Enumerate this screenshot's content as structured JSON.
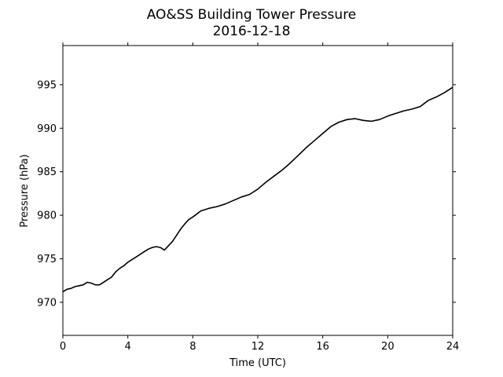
{
  "chart_data": {
    "type": "line",
    "title": "AO&SS Building Tower Pressure",
    "subtitle": "2016-12-18",
    "xlabel": "Time (UTC)",
    "ylabel": "Pressure (hPa)",
    "xlim": [
      0,
      24
    ],
    "ylim": [
      966.2,
      999.5
    ],
    "xticks": [
      0,
      4,
      8,
      12,
      16,
      20,
      24
    ],
    "yticks": [
      970,
      975,
      980,
      985,
      990,
      995
    ],
    "grid": false,
    "line_color": "#000000",
    "series": [
      {
        "x": [
          0,
          0.25,
          0.5,
          0.75,
          1.0,
          1.25,
          1.5,
          1.75,
          2.0,
          2.25,
          2.5,
          2.75,
          3.0,
          3.25,
          3.5,
          3.75,
          4.0,
          4.25,
          4.5,
          4.75,
          5.0,
          5.25,
          5.5,
          5.75,
          6.0,
          6.25,
          6.5,
          6.75,
          7.0,
          7.25,
          7.5,
          7.75,
          8.0,
          8.5,
          9.0,
          9.5,
          10.0,
          10.5,
          11.0,
          11.5,
          12.0,
          12.5,
          13.0,
          13.5,
          14.0,
          14.5,
          15.0,
          15.5,
          16.0,
          16.5,
          17.0,
          17.5,
          18.0,
          18.5,
          19.0,
          19.5,
          20.0,
          20.5,
          21.0,
          21.5,
          22.0,
          22.5,
          23.0,
          23.5,
          24.0
        ],
        "y": [
          971.2,
          971.5,
          971.6,
          971.8,
          971.9,
          972.0,
          972.3,
          972.2,
          972.0,
          972.0,
          972.3,
          972.6,
          972.9,
          973.5,
          973.9,
          974.2,
          974.6,
          974.9,
          975.2,
          975.5,
          975.8,
          976.1,
          976.3,
          976.4,
          976.3,
          976.0,
          976.5,
          977.0,
          977.7,
          978.4,
          979.0,
          979.5,
          979.8,
          980.5,
          980.8,
          981.0,
          981.3,
          981.7,
          982.1,
          982.4,
          983.0,
          983.8,
          984.5,
          985.2,
          986.0,
          986.9,
          987.8,
          988.6,
          989.4,
          990.2,
          990.7,
          991.0,
          991.1,
          990.9,
          990.8,
          991.0,
          991.4,
          991.7,
          992.0,
          992.2,
          992.5,
          993.2,
          993.6,
          994.1,
          994.7
        ]
      }
    ]
  }
}
